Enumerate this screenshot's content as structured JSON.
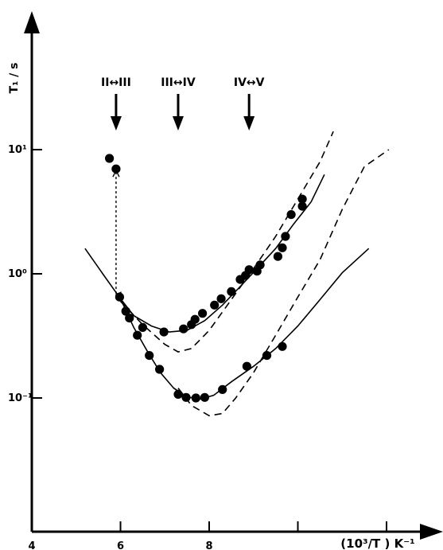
{
  "chart_data": {
    "type": "scatter",
    "xlabel": "(10³/T ) K⁻¹",
    "ylabel": "T₁ / s",
    "x_ticks": [
      {
        "value": 4,
        "label": "4"
      },
      {
        "value": 6,
        "label": "6"
      },
      {
        "value": 8,
        "label": "8"
      },
      {
        "value": 10,
        "label": ""
      },
      {
        "value": 12,
        "label": ""
      }
    ],
    "y_ticks": [
      {
        "value": 10,
        "label": "10¹"
      },
      {
        "value": 1,
        "label": "10⁰"
      },
      {
        "value": 0.1,
        "label": "10⁻¹"
      }
    ],
    "xlim": [
      4,
      13
    ],
    "ylim": [
      0.01,
      100
    ],
    "yscale": "log",
    "phase_transitions": [
      {
        "label": "II↔III",
        "x": 5.9
      },
      {
        "label": "III↔IV",
        "x": 7.3
      },
      {
        "label": "IV↔V",
        "x": 8.9
      }
    ],
    "series": [
      {
        "kind": "points",
        "values": [
          [
            5.75,
            8.5
          ],
          [
            5.9,
            7.0
          ],
          [
            5.98,
            0.65
          ],
          [
            6.12,
            0.5
          ],
          [
            6.2,
            0.44
          ],
          [
            6.5,
            0.37
          ],
          [
            6.98,
            0.34
          ],
          [
            7.42,
            0.36
          ],
          [
            7.6,
            0.39
          ],
          [
            7.68,
            0.43
          ],
          [
            7.85,
            0.48
          ],
          [
            8.12,
            0.56
          ],
          [
            8.27,
            0.63
          ],
          [
            8.5,
            0.72
          ],
          [
            8.7,
            0.9
          ],
          [
            8.82,
            0.97
          ],
          [
            8.9,
            1.08
          ],
          [
            9.08,
            1.05
          ],
          [
            9.15,
            1.18
          ],
          [
            9.55,
            1.38
          ],
          [
            9.65,
            1.62
          ],
          [
            9.72,
            2.0
          ],
          [
            9.85,
            3.0
          ],
          [
            10.1,
            4.0
          ],
          [
            10.1,
            3.5
          ],
          [
            6.38,
            0.32
          ],
          [
            6.65,
            0.22
          ],
          [
            6.88,
            0.17
          ],
          [
            7.3,
            0.107
          ],
          [
            7.48,
            0.101
          ],
          [
            7.7,
            0.1
          ],
          [
            7.9,
            0.101
          ],
          [
            8.3,
            0.117
          ],
          [
            8.85,
            0.18
          ],
          [
            9.3,
            0.22
          ],
          [
            9.65,
            0.26
          ]
        ]
      },
      {
        "kind": "solid",
        "values": [
          [
            5.2,
            1.6
          ],
          [
            5.6,
            1.0
          ],
          [
            6.0,
            0.63
          ],
          [
            6.3,
            0.46
          ],
          [
            6.7,
            0.38
          ],
          [
            7.1,
            0.34
          ],
          [
            7.5,
            0.35
          ],
          [
            7.9,
            0.42
          ],
          [
            8.3,
            0.56
          ],
          [
            8.7,
            0.79
          ],
          [
            9.1,
            1.12
          ],
          [
            9.5,
            1.6
          ],
          [
            9.9,
            2.5
          ],
          [
            10.3,
            3.8
          ],
          [
            10.6,
            6.3
          ]
        ]
      },
      {
        "kind": "solid",
        "values": [
          [
            6.0,
            0.63
          ],
          [
            6.3,
            0.37
          ],
          [
            6.6,
            0.24
          ],
          [
            6.9,
            0.16
          ],
          [
            7.2,
            0.12
          ],
          [
            7.5,
            0.102
          ],
          [
            7.8,
            0.098
          ],
          [
            8.1,
            0.105
          ],
          [
            8.5,
            0.135
          ],
          [
            9.0,
            0.18
          ],
          [
            9.5,
            0.25
          ],
          [
            10.0,
            0.38
          ],
          [
            10.5,
            0.62
          ],
          [
            11.0,
            1.02
          ],
          [
            11.6,
            1.6
          ]
        ]
      },
      {
        "kind": "dashed",
        "values": [
          [
            6.0,
            0.6
          ],
          [
            6.5,
            0.39
          ],
          [
            7.0,
            0.27
          ],
          [
            7.3,
            0.235
          ],
          [
            7.6,
            0.25
          ],
          [
            8.0,
            0.35
          ],
          [
            8.5,
            0.62
          ],
          [
            9.0,
            1.1
          ],
          [
            9.5,
            2.0
          ],
          [
            10.0,
            4.0
          ],
          [
            10.5,
            8.0
          ],
          [
            10.8,
            14.0
          ]
        ]
      },
      {
        "kind": "dashed",
        "values": [
          [
            7.3,
            0.12
          ],
          [
            7.6,
            0.087
          ],
          [
            8.0,
            0.072
          ],
          [
            8.3,
            0.075
          ],
          [
            8.6,
            0.1
          ],
          [
            9.0,
            0.16
          ],
          [
            9.5,
            0.32
          ],
          [
            10.0,
            0.65
          ],
          [
            10.5,
            1.3
          ],
          [
            11.0,
            3.3
          ],
          [
            11.5,
            7.3
          ],
          [
            12.05,
            10.0
          ]
        ]
      }
    ],
    "annotations": [
      {
        "type": "dotted-arrow",
        "from": [
          5.9,
          6.6
        ],
        "to": [
          5.9,
          0.68
        ]
      }
    ],
    "grid": false
  }
}
